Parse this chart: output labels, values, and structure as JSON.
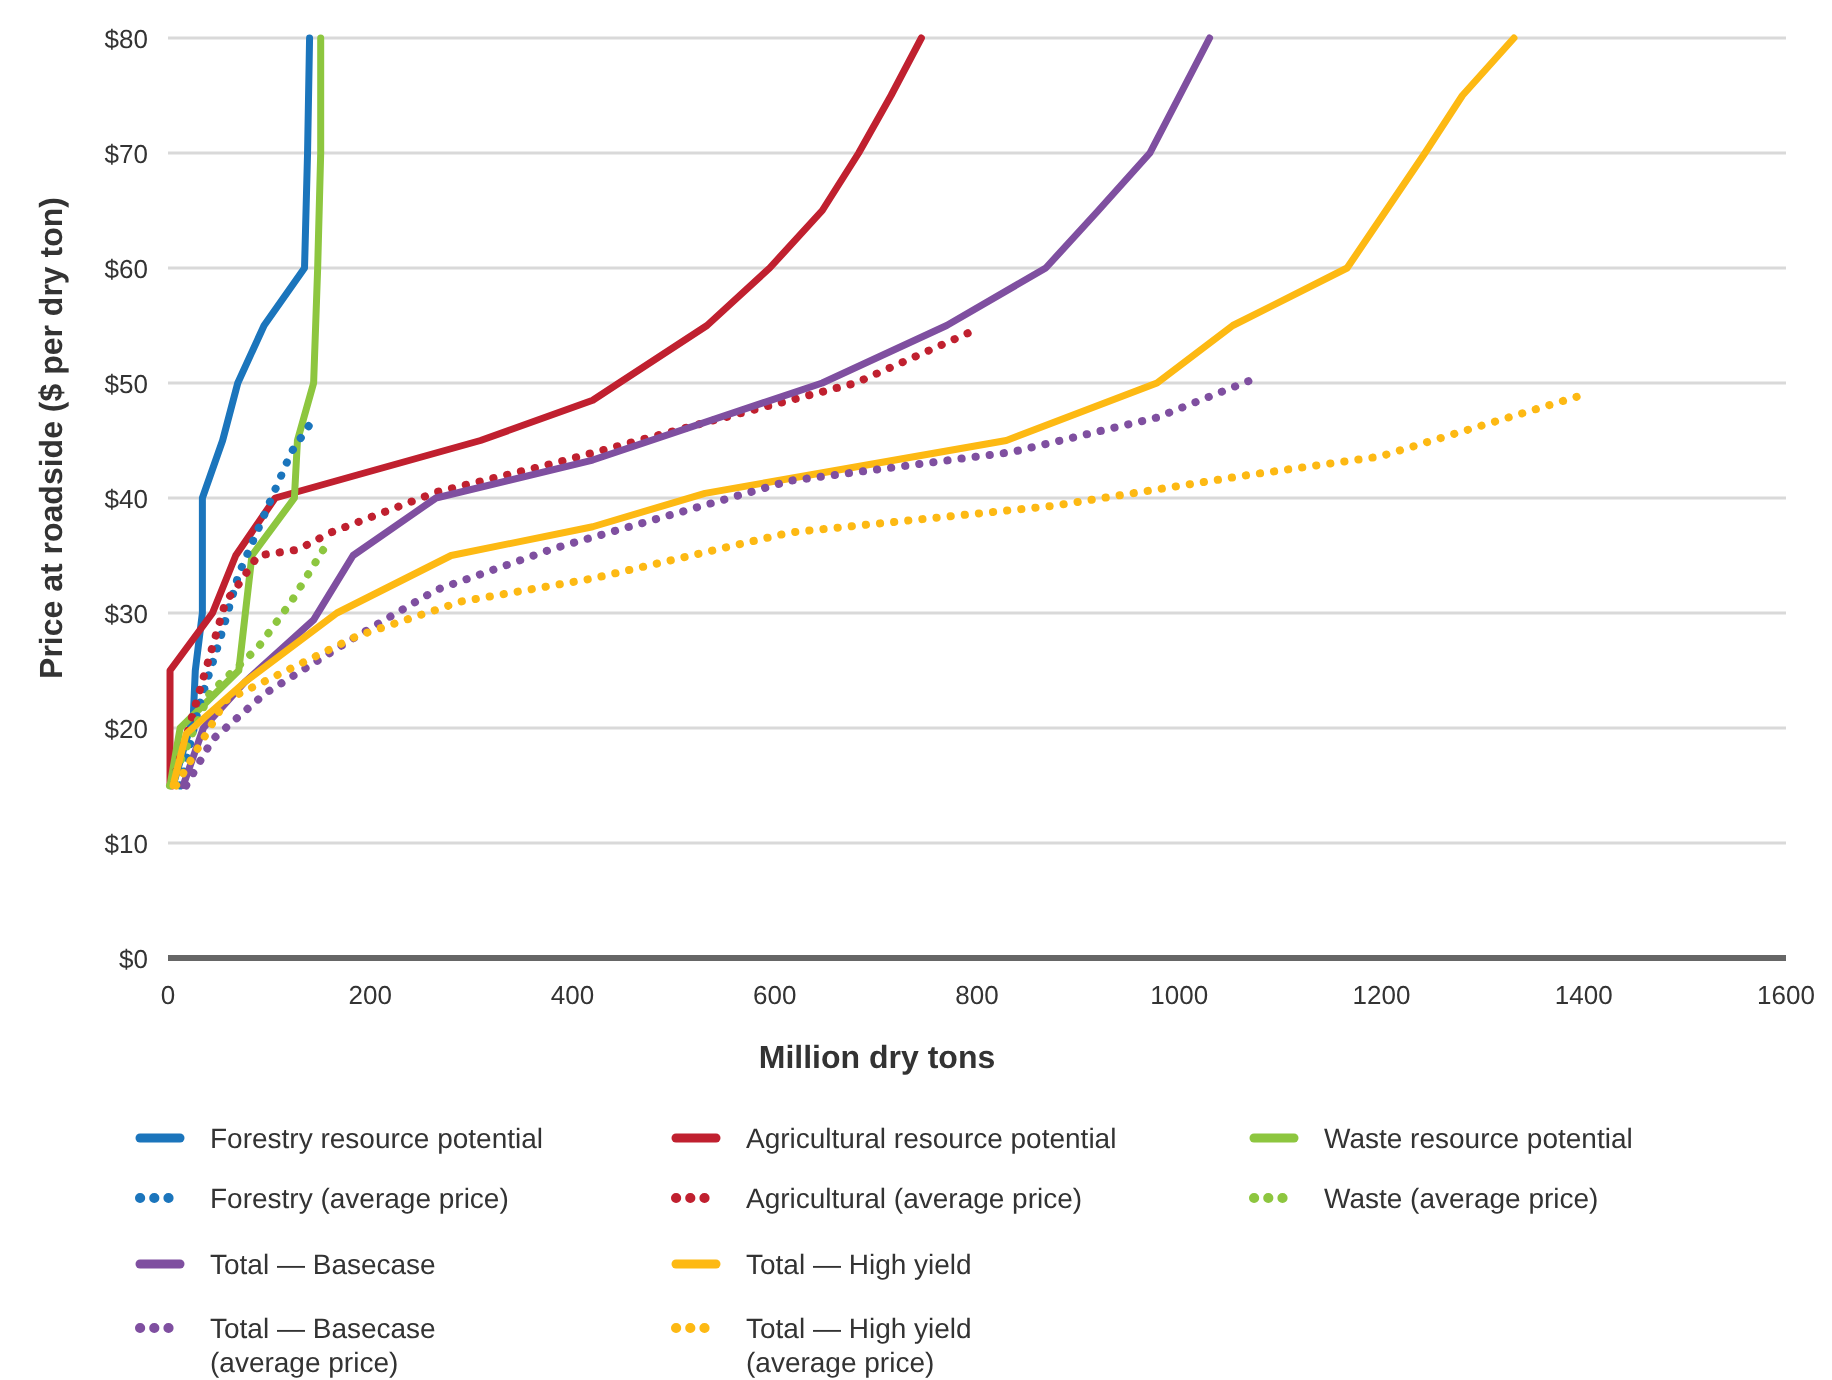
{
  "chart_data": {
    "type": "line",
    "xlabel": "Million dry tons",
    "ylabel": "Price at roadside ($ per dry ton)",
    "xlim": [
      0,
      1600
    ],
    "xticks": [
      0,
      200,
      400,
      600,
      800,
      1000,
      1200,
      1400,
      1600
    ],
    "ylim": [
      0,
      80
    ],
    "yticks": [
      {
        "value": 0,
        "label": "$0"
      },
      {
        "value": 10,
        "label": "$10"
      },
      {
        "value": 20,
        "label": "$20"
      },
      {
        "value": 30,
        "label": "$30"
      },
      {
        "value": 40,
        "label": "$40"
      },
      {
        "value": 50,
        "label": "$50"
      },
      {
        "value": 60,
        "label": "$60"
      },
      {
        "value": 70,
        "label": "$70"
      },
      {
        "value": 80,
        "label": "$80"
      }
    ],
    "grid": "y",
    "legend": "bottom",
    "marker": "none",
    "series": [
      {
        "name": "Forestry resource potential",
        "color": "#1b75bc",
        "line_style": "solid",
        "x": [
          5,
          25,
          27,
          34,
          34,
          54,
          69,
          95,
          135,
          138,
          140
        ],
        "values": [
          15,
          21,
          25,
          30,
          40,
          45,
          50,
          55,
          60,
          70,
          80
        ]
      },
      {
        "name": "Agricultural resource potential",
        "color": "#c0202f",
        "line_style": "solid",
        "x": [
          2,
          2,
          44,
          67,
          106,
          187,
          309,
          420,
          446,
          533,
          595,
          647,
          683,
          715,
          745
        ],
        "values": [
          15,
          25,
          30,
          35,
          40,
          42,
          45,
          48.5,
          50,
          55,
          60,
          65,
          70,
          75,
          80
        ]
      },
      {
        "name": "Waste resource potential",
        "color": "#8dc63f",
        "line_style": "solid",
        "x": [
          2,
          12,
          41,
          70,
          83,
          125,
          128,
          144,
          148,
          151,
          151
        ],
        "values": [
          15,
          20,
          22.5,
          25,
          35,
          40,
          45,
          50,
          60,
          70,
          80
        ]
      },
      {
        "name": "Forestry (average price)",
        "color": "#1b75bc",
        "line_style": "dotted",
        "x": [
          12,
          31,
          51,
          70,
          96,
          122,
          141
        ],
        "values": [
          15,
          22,
          27.6,
          33.4,
          38.7,
          44,
          46.5
        ]
      },
      {
        "name": "Agricultural (average price)",
        "color": "#c0202f",
        "line_style": "dotted",
        "x": [
          4,
          57,
          66,
          89,
          128,
          161,
          265,
          381,
          550,
          680,
          803
        ],
        "values": [
          15,
          31,
          32,
          35,
          35.5,
          37,
          40.5,
          43,
          47,
          50,
          54.8
        ]
      },
      {
        "name": "Waste (average price)",
        "color": "#8dc63f",
        "line_style": "dotted",
        "x": [
          2,
          41,
          89,
          122,
          157
        ],
        "values": [
          15,
          23,
          27,
          31,
          36
        ]
      },
      {
        "name": "Total — Basecase",
        "color": "#7f4fa0",
        "line_style": "solid",
        "x": [
          15,
          35,
          76,
          144,
          183,
          265,
          420,
          647,
          770,
          868,
          920,
          971,
          1030
        ],
        "values": [
          15,
          20,
          24,
          29.4,
          35,
          40,
          43.3,
          50,
          55,
          60,
          65,
          70,
          80
        ]
      },
      {
        "name": "Total — High yield",
        "color": "#fdb913",
        "line_style": "solid",
        "x": [
          5,
          18,
          76,
          167,
          280,
          420,
          531,
          829,
          978,
          1053,
          1166,
          1243,
          1280,
          1331
        ],
        "values": [
          15,
          19.5,
          24,
          30,
          35,
          37.5,
          40.4,
          45,
          50,
          55,
          60,
          70,
          75,
          80
        ]
      },
      {
        "name": "Total — Basecase (average price)",
        "color": "#7f4fa0",
        "line_style": "dotted",
        "x": [
          18,
          44,
          96,
          187,
          265,
          381,
          615,
          835,
          978,
          1078
        ],
        "values": [
          15,
          19,
          23,
          28,
          32,
          35.6,
          41.5,
          44,
          47,
          50.5
        ]
      },
      {
        "name": "Total — High yield (average price)",
        "color": "#fdb913",
        "line_style": "dotted",
        "x": [
          8,
          57,
          187,
          290,
          420,
          615,
          874,
          1068,
          1198,
          1393
        ],
        "values": [
          15,
          22.4,
          28,
          31,
          33,
          37,
          39.3,
          42,
          43.6,
          48.8
        ]
      }
    ]
  }
}
